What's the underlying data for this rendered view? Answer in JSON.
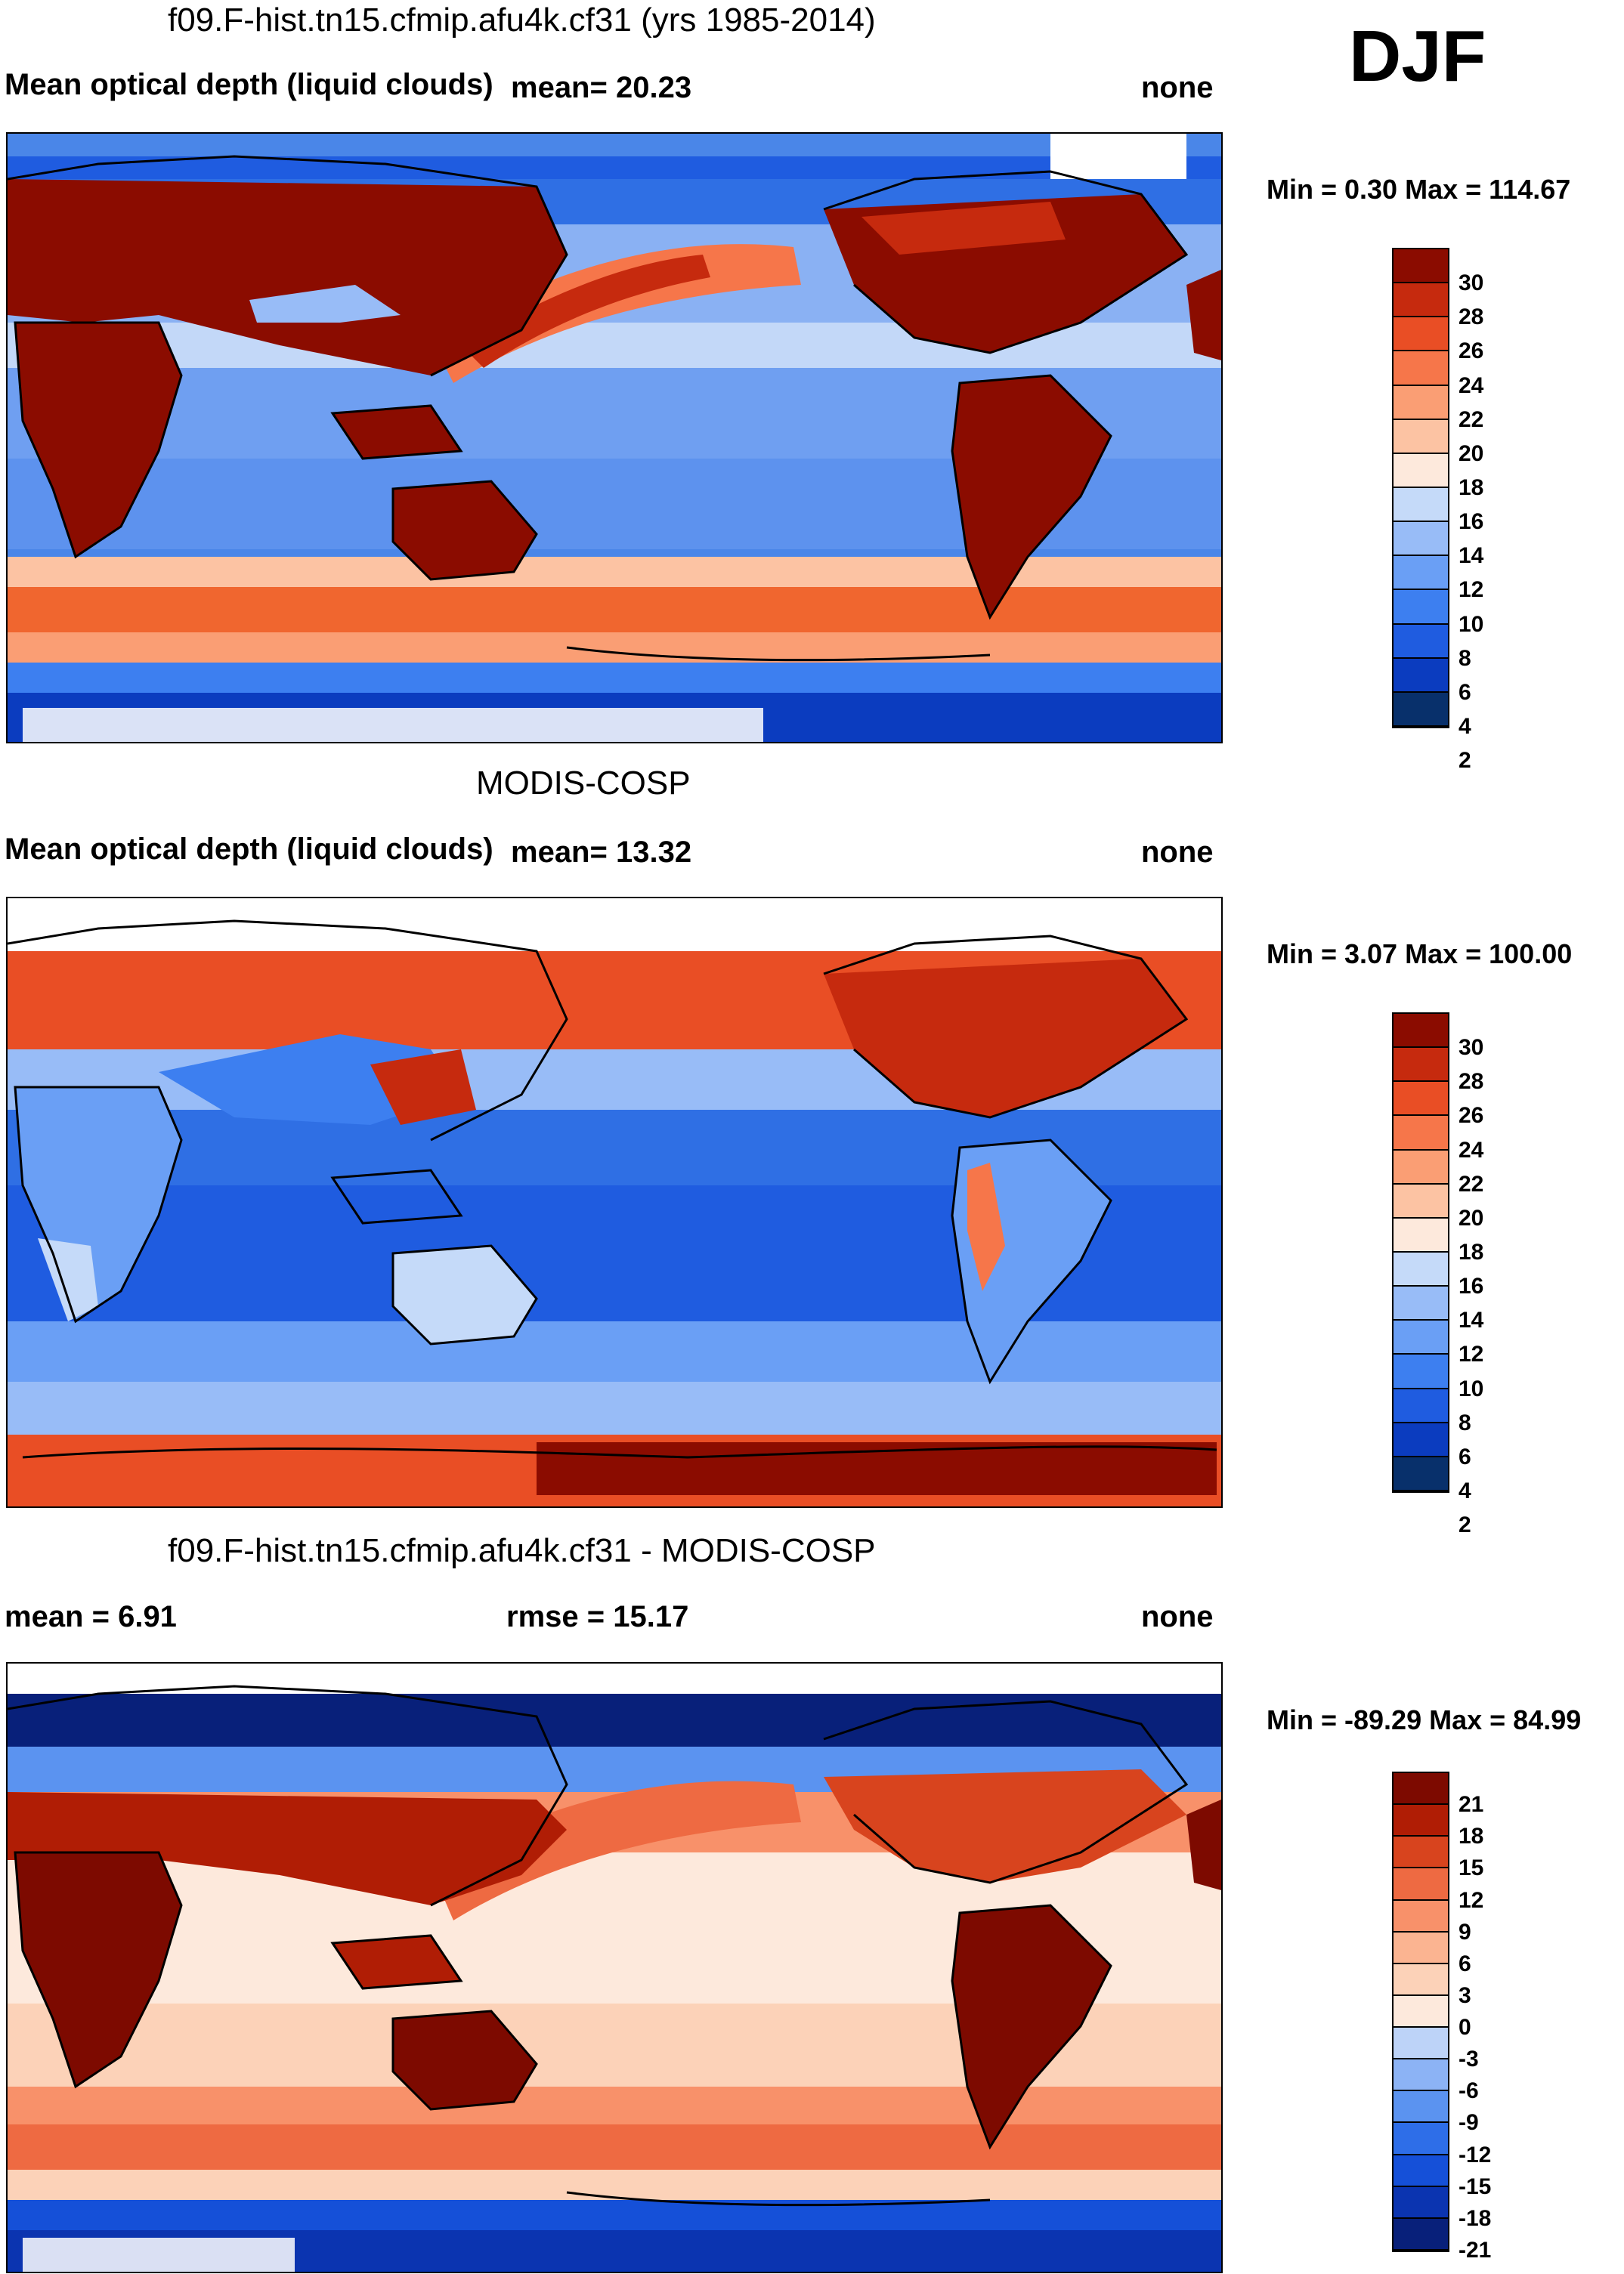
{
  "season": "DJF",
  "panels": [
    {
      "title": "f09.F-hist.tn15.cfmip.afu4k.cf31 (yrs 1985-2014)",
      "left_label": "Mean optical depth (liquid clouds)",
      "center_label": "mean=  20.23",
      "right_label": "none",
      "minmax": "Min =   0.30 Max = 114.67",
      "colors": [
        "#08306b",
        "#0b3cbf",
        "#1f5ce0",
        "#3d7ff0",
        "#6a9ff5",
        "#98bcf7",
        "#c5daf9",
        "#fde9dc",
        "#fcc3a3",
        "#fa9e74",
        "#f6764a",
        "#e94e25",
        "#c62a0e",
        "#8b0c00"
      ],
      "tick_labels": [
        "30",
        "28",
        "26",
        "24",
        "22",
        "20",
        "18",
        "16",
        "14",
        "12",
        "10",
        "8",
        "6",
        "4",
        "2"
      ]
    },
    {
      "title": "MODIS-COSP",
      "left_label": "Mean optical depth (liquid clouds)",
      "center_label": "mean=  13.32",
      "right_label": "none",
      "minmax": "Min =   3.07 Max = 100.00",
      "colors": [
        "#08306b",
        "#0b3cbf",
        "#1f5ce0",
        "#3d7ff0",
        "#6a9ff5",
        "#98bcf7",
        "#c5daf9",
        "#fde9dc",
        "#fcc3a3",
        "#fa9e74",
        "#f6764a",
        "#e94e25",
        "#c62a0e",
        "#8b0c00"
      ],
      "tick_labels": [
        "30",
        "28",
        "26",
        "24",
        "22",
        "20",
        "18",
        "16",
        "14",
        "12",
        "10",
        "8",
        "6",
        "4",
        "2"
      ]
    },
    {
      "title": "f09.F-hist.tn15.cfmip.afu4k.cf31 - MODIS-COSP",
      "left_label": "mean =   6.91",
      "center_label": "rmse =  15.17",
      "right_label": "none",
      "minmax": "Min = -89.29 Max =  84.99",
      "colors": [
        "#08207a",
        "#0b34b0",
        "#1550d8",
        "#2e6ee8",
        "#5b93f0",
        "#8cb3f5",
        "#bdd3f8",
        "#fde9dc",
        "#fcd2b8",
        "#fbb491",
        "#f8916a",
        "#ee6a42",
        "#d8441e",
        "#b01d05",
        "#7d0a00"
      ],
      "tick_labels": [
        "21",
        "18",
        "15",
        "12",
        "9",
        "6",
        "3",
        "0",
        "-3",
        "-6",
        "-9",
        "-12",
        "-15",
        "-18",
        "-21"
      ]
    }
  ]
}
